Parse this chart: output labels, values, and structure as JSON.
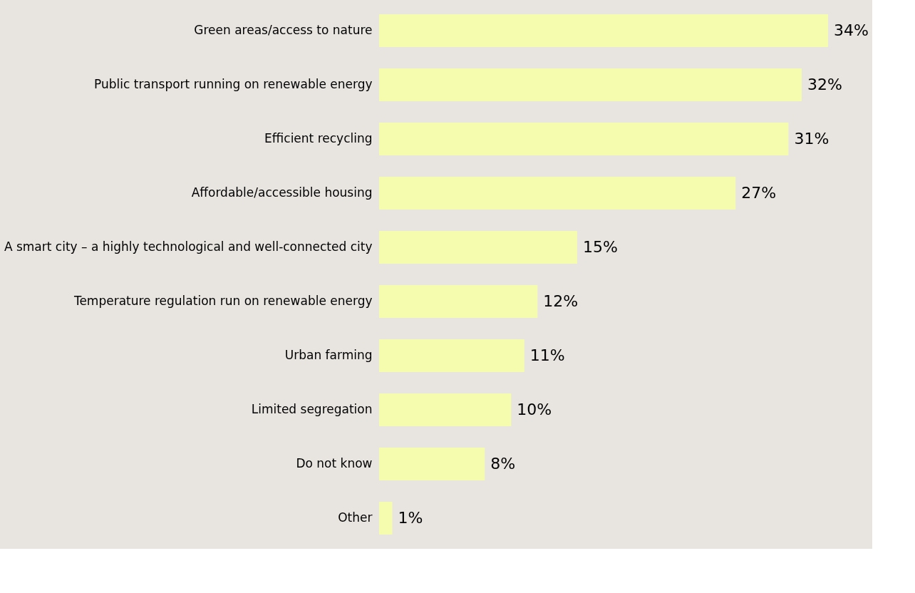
{
  "chart_data": {
    "type": "bar",
    "orientation": "horizontal",
    "categories": [
      "Green areas/access to nature",
      "Public transport running on renewable energy",
      "Efficient recycling",
      "Affordable/accessible housing",
      "A smart city – a highly technological and well-connected city",
      "Temperature regulation run on renewable energy",
      "Urban farming",
      "Limited segregation",
      "Do not know",
      "Other"
    ],
    "values": [
      34,
      32,
      31,
      27,
      15,
      12,
      11,
      10,
      8,
      1
    ],
    "value_labels": [
      "34%",
      "32%",
      "31%",
      "27%",
      "15%",
      "12%",
      "11%",
      "10%",
      "8%",
      "1%"
    ],
    "color": "#f5fcae",
    "tick_labels": "y",
    "grid": false
  }
}
